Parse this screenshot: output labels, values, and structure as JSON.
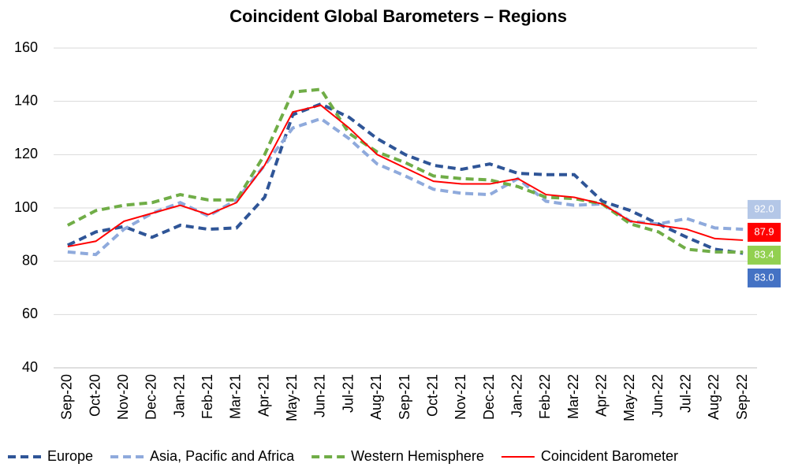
{
  "chart_data": {
    "type": "line",
    "title": "Coincident Global Barometers – Regions",
    "categories": [
      "Sep-20",
      "Oct-20",
      "Nov-20",
      "Dec-20",
      "Jan-21",
      "Feb-21",
      "Mar-21",
      "Apr-21",
      "May-21",
      "Jun-21",
      "Jul-21",
      "Aug-21",
      "Sep-21",
      "Oct-21",
      "Nov-21",
      "Dec-21",
      "Jan-22",
      "Feb-22",
      "Mar-22",
      "Apr-22",
      "May-22",
      "Jun-22",
      "Jul-22",
      "Aug-22",
      "Sep-22"
    ],
    "ylim": [
      40,
      160
    ],
    "yticks": [
      40,
      60,
      80,
      100,
      120,
      140,
      160
    ],
    "grid": true,
    "series": [
      {
        "name": "Europe",
        "color": "#2f5597",
        "dashed": true,
        "label_color": "#4472c4",
        "values": [
          86,
          91,
          93,
          89,
          93.5,
          92,
          92.5,
          104,
          135,
          139,
          134,
          126,
          120,
          116,
          114.5,
          116.5,
          113,
          112.5,
          112.5,
          102.5,
          99,
          94,
          89,
          84.5,
          83.0
        ],
        "value_labels": [
          null,
          null,
          null,
          null,
          null,
          null,
          null,
          null,
          null,
          null,
          null,
          null,
          null,
          null,
          null,
          null,
          null,
          null,
          null,
          null,
          null,
          null,
          null,
          null,
          "83.0"
        ]
      },
      {
        "name": "Asia, Pacific and Africa",
        "color": "#8faadc",
        "dashed": true,
        "label_color": "#b4c7e7",
        "values": [
          83.5,
          82.5,
          92,
          98,
          102,
          97,
          103,
          116,
          130,
          133.5,
          126,
          116.5,
          112,
          107,
          105.5,
          105,
          111,
          102.5,
          101,
          101.5,
          95,
          94,
          96,
          92.5,
          92.0
        ],
        "value_labels": [
          null,
          null,
          null,
          null,
          null,
          null,
          null,
          null,
          null,
          null,
          null,
          null,
          null,
          null,
          null,
          null,
          null,
          null,
          null,
          null,
          null,
          null,
          null,
          null,
          "92.0"
        ]
      },
      {
        "name": "Western Hemisphere",
        "color": "#70ad47",
        "dashed": true,
        "label_color": "#92d050",
        "values": [
          93.5,
          99,
          101,
          102,
          105,
          103,
          103,
          120,
          143.5,
          144.5,
          128,
          121,
          117,
          112,
          111,
          110.5,
          108,
          104,
          103.5,
          101.5,
          94,
          91,
          84.5,
          83.5,
          83.4
        ],
        "value_labels": [
          null,
          null,
          null,
          null,
          null,
          null,
          null,
          null,
          null,
          null,
          null,
          null,
          null,
          null,
          null,
          null,
          null,
          null,
          null,
          null,
          null,
          null,
          null,
          null,
          "83.4"
        ]
      },
      {
        "name": "Coincident Barometer",
        "color": "#ff0000",
        "dashed": false,
        "label_color": "#ff0000",
        "values": [
          85.5,
          87.5,
          95,
          98,
          101,
          97.5,
          102,
          116,
          136,
          138.5,
          130,
          120,
          115,
          110,
          109,
          109,
          111,
          105,
          104,
          101.5,
          95,
          93.5,
          92,
          88.5,
          87.9
        ],
        "value_labels": [
          null,
          null,
          null,
          null,
          null,
          null,
          null,
          null,
          null,
          null,
          null,
          null,
          null,
          null,
          null,
          null,
          null,
          null,
          null,
          null,
          null,
          null,
          null,
          null,
          "87.9"
        ]
      }
    ]
  }
}
